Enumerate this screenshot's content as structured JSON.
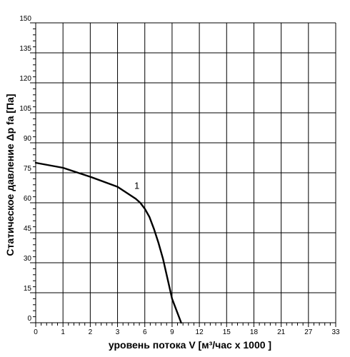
{
  "chart_data": {
    "type": "line",
    "xlabel": "уровень потока  V [м³/час x 1000 ]",
    "ylabel": "Статическое давление  Δp fa [Па]",
    "x_ticks": [
      "0",
      "1",
      "2",
      "3",
      "6",
      "9",
      "12",
      "15",
      "18",
      "21",
      "27",
      "33"
    ],
    "y_ticks": [
      "0",
      "15",
      "30",
      "45",
      "60",
      "75",
      "90",
      "105",
      "120",
      "135",
      "150"
    ],
    "ylim": [
      0,
      150
    ],
    "grid": true,
    "series": [
      {
        "name": "1",
        "x": [
          0,
          1,
          2,
          3,
          4,
          5,
          5.5,
          6,
          6.5,
          7,
          7.5,
          8,
          8.5,
          9,
          9.5,
          10
        ],
        "y": [
          80,
          77.5,
          73,
          68,
          65,
          62,
          60,
          57,
          53,
          47,
          40,
          32,
          22,
          12,
          6,
          0
        ]
      }
    ]
  }
}
